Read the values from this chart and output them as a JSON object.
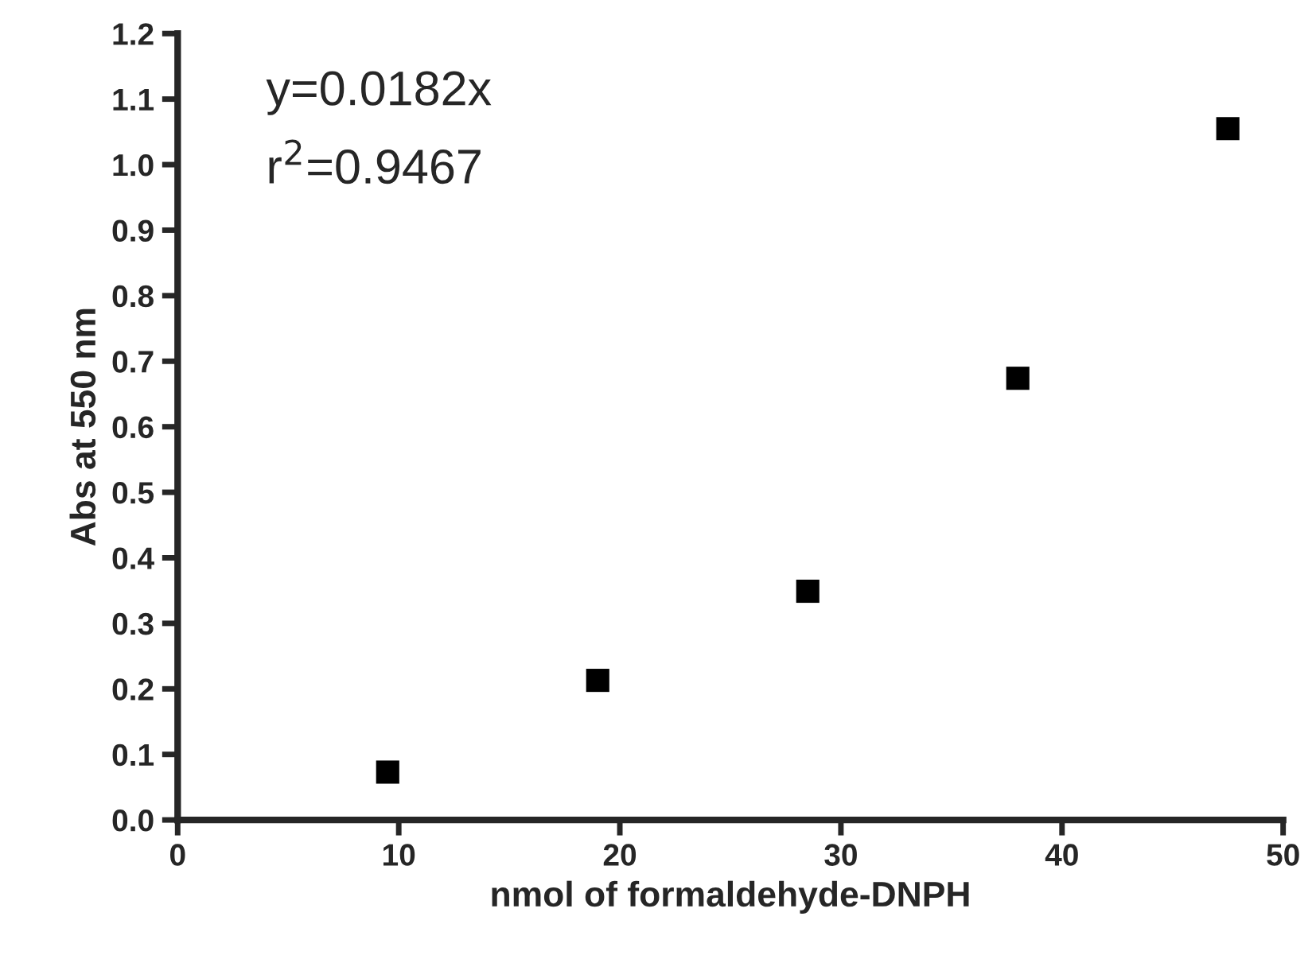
{
  "chart_data": {
    "type": "scatter",
    "xlabel": "nmol of formaldehyde-DNPH",
    "ylabel": "Abs at 550 nm",
    "x": [
      9.5,
      19,
      28.5,
      38,
      47.5
    ],
    "series": [
      {
        "color": "#000000",
        "values": [
          0.073,
          0.213,
          0.349,
          0.674,
          1.055
        ]
      }
    ],
    "marker": "square",
    "xlim": [
      0,
      50
    ],
    "xticks": [
      0,
      10,
      20,
      30,
      40,
      50
    ],
    "ylim": [
      0,
      1.2
    ],
    "yticks": [
      {
        "value": 0,
        "label": "0.0"
      },
      0.1,
      0.2,
      0.3,
      0.4,
      0.5,
      0.6,
      0.7,
      0.8,
      0.9,
      {
        "value": 1,
        "label": "1.0"
      },
      1.1,
      1.2
    ],
    "annotations": [
      "y=0.0182x",
      "r$^{2}$=0.9467"
    ],
    "grid": false,
    "legend": false
  }
}
